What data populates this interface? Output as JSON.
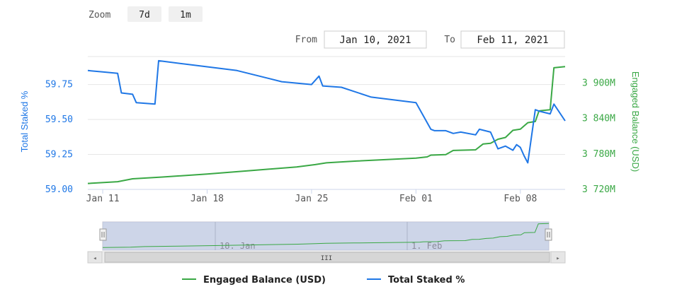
{
  "toolbar": {
    "zoom_label": "Zoom",
    "zoom_buttons": [
      "7d",
      "1m"
    ],
    "from_label": "From",
    "from_value": "Jan 10, 2021",
    "to_label": "To",
    "to_value": "Feb 11, 2021"
  },
  "navigator": {
    "labels": [
      "18. Jan",
      "1. Feb"
    ],
    "scroll_grip": "III",
    "scroll_left": "◂",
    "scroll_right": "▸"
  },
  "legend": [
    {
      "name": "Engaged Balance (USD)",
      "color": "#3aa845"
    },
    {
      "name": "Total Staked %",
      "color": "#1f77e6"
    }
  ],
  "chart_data": {
    "type": "line",
    "x_tick_labels": [
      "Jan 11",
      "Jan 18",
      "Jan 25",
      "Feb 01",
      "Feb 08"
    ],
    "y_left": {
      "label": "Total Staked %",
      "ticks": [
        "59.00",
        "59.25",
        "59.50",
        "59.75"
      ],
      "range": [
        59.0,
        59.95
      ],
      "color": "#1f77e6"
    },
    "y_right": {
      "label": "Engaged Balance (USD)",
      "ticks": [
        "3 720M",
        "3 780M",
        "3 840M",
        "3 900M"
      ],
      "range": [
        3720,
        3945
      ],
      "color": "#3aa845"
    },
    "xlim": [
      "2021-01-10",
      "2021-02-11"
    ],
    "grid": "horizontal",
    "legend_position": "bottom-center",
    "series": [
      {
        "name": "Total Staked %",
        "axis": "left",
        "color": "#1f77e6",
        "x": [
          "2021-01-10",
          "2021-01-11",
          "2021-01-12",
          "2021-01-12T06",
          "2021-01-13",
          "2021-01-13T06",
          "2021-01-14T12",
          "2021-01-14T18",
          "2021-01-17",
          "2021-01-20",
          "2021-01-23",
          "2021-01-25",
          "2021-01-25T12",
          "2021-01-25T18",
          "2021-01-27",
          "2021-01-29",
          "2021-02-01",
          "2021-02-02",
          "2021-02-02T06",
          "2021-02-03",
          "2021-02-03T12",
          "2021-02-04",
          "2021-02-05",
          "2021-02-05T06",
          "2021-02-06",
          "2021-02-06T12",
          "2021-02-07",
          "2021-02-07T12",
          "2021-02-07T18",
          "2021-02-08",
          "2021-02-08T06",
          "2021-02-08T12",
          "2021-02-09",
          "2021-02-09T06",
          "2021-02-10",
          "2021-02-10T06",
          "2021-02-11"
        ],
        "values": [
          59.85,
          59.84,
          59.83,
          59.69,
          59.68,
          59.62,
          59.61,
          59.92,
          59.89,
          59.85,
          59.77,
          59.75,
          59.81,
          59.74,
          59.73,
          59.66,
          59.62,
          59.43,
          59.42,
          59.42,
          59.4,
          59.41,
          59.39,
          59.43,
          59.41,
          59.29,
          59.31,
          59.28,
          59.32,
          59.3,
          59.24,
          59.19,
          59.57,
          59.56,
          59.54,
          59.61,
          59.49
        ]
      },
      {
        "name": "Engaged Balance (USD)",
        "axis": "right",
        "color": "#3aa845",
        "x": [
          "2021-01-10",
          "2021-01-12",
          "2021-01-13",
          "2021-01-15",
          "2021-01-18",
          "2021-01-21",
          "2021-01-24",
          "2021-01-25T06",
          "2021-01-26",
          "2021-01-28",
          "2021-02-01",
          "2021-02-01T18",
          "2021-02-02",
          "2021-02-03",
          "2021-02-03T12",
          "2021-02-05",
          "2021-02-05T12",
          "2021-02-06",
          "2021-02-06T12",
          "2021-02-07",
          "2021-02-07T12",
          "2021-02-08",
          "2021-02-08T12",
          "2021-02-09",
          "2021-02-09T06",
          "2021-02-10",
          "2021-02-10T06",
          "2021-02-11"
        ],
        "values": [
          3730,
          3733,
          3738,
          3741,
          3746,
          3752,
          3758,
          3762,
          3765,
          3768,
          3773,
          3775,
          3778,
          3779,
          3786,
          3787,
          3797,
          3798,
          3805,
          3808,
          3820,
          3822,
          3833,
          3835,
          3853,
          3855,
          3926,
          3928
        ]
      }
    ]
  }
}
